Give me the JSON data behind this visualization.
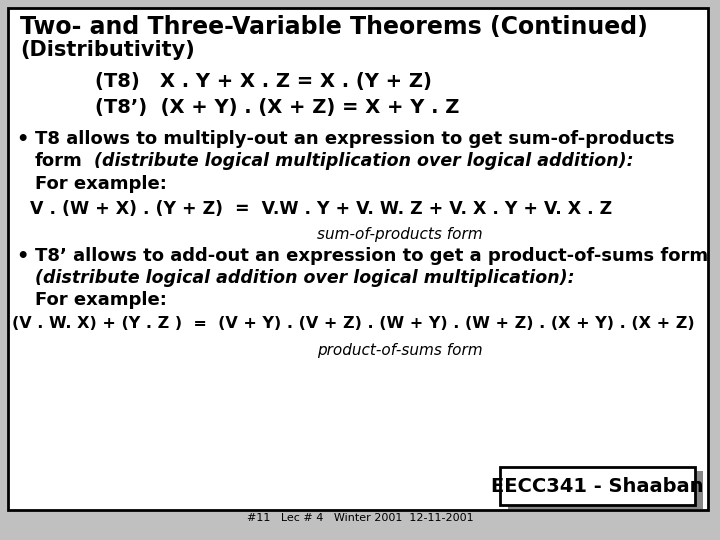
{
  "bg_color": "#c0c0c0",
  "slide_bg": "#ffffff",
  "border_color": "#000000",
  "title_line1": "Two- and Three-Variable Theorems (Continued)",
  "title_line2": "(Distributivity)",
  "t8_line": "(T8)   X . Y + X . Z = X . (Y + Z)",
  "t8p_line": "(T8’)  (X + Y) . (X + Z) = X + Y . Z",
  "bullet1_line1": "T8 allows to multiply-out an expression to get sum-of-products",
  "bullet1_line2_bold": "form",
  "bullet1_line2_italic": "  (distribute logical multiplication over logical addition):",
  "bullet1_forexample": "For example:",
  "example1": "V . (W + X) . (Y + Z)  =  V.W . Y + V. W. Z + V. X . Y + V. X . Z",
  "sum_of_products": "sum-of-products form",
  "bullet2_line1": "T8’ allows to add-out an expression to get a product-of-sums form",
  "bullet2_line2_italic": "(distribute logical addition over logical multiplication):",
  "bullet2_forexample": "For example:",
  "example2": "(V . W. X) + (Y . Z )  =  (V + Y) . (V + Z) . (W + Y) . (W + Z) . (X + Y) . (X + Z)",
  "product_of_sums": "product-of-sums form",
  "footer_box": "EECC341 - Shaaban",
  "footer_small": "#11   Lec # 4   Winter 2001  12-11-2001",
  "text_color": "#000000"
}
